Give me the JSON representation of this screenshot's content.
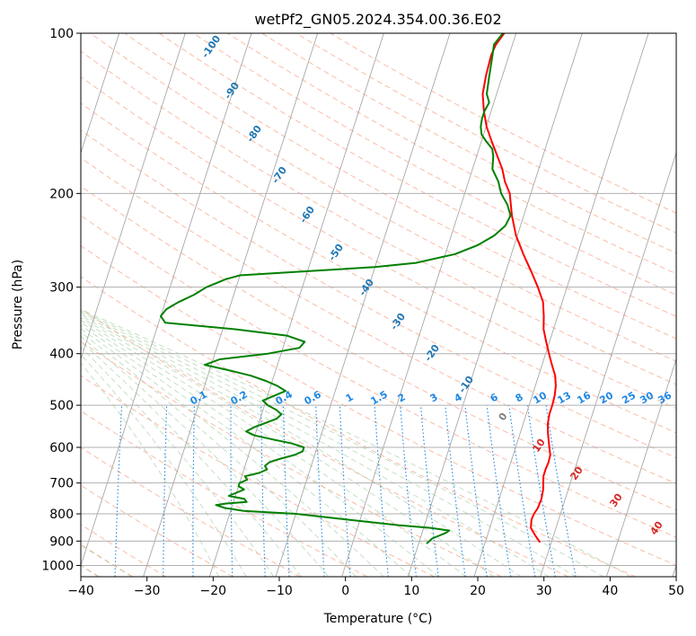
{
  "chart_data": {
    "type": "line",
    "title": "wetPf2_GN05.2024.354.00.36.E02",
    "xlabel": "Temperature (°C)",
    "ylabel": "Pressure (hPa)",
    "xlim": [
      -40,
      50
    ],
    "ylim": [
      1050,
      100
    ],
    "y_scale": "log",
    "x_ticks": [
      "−40",
      "−30",
      "−20",
      "−10",
      "0",
      "10",
      "20",
      "30",
      "40",
      "50"
    ],
    "y_ticks": [
      "100",
      "200",
      "300",
      "400",
      "500",
      "600",
      "700",
      "800",
      "900",
      "1000"
    ],
    "grid": true,
    "series": [
      {
        "color": "#ff0000",
        "p": [
          905,
          880,
          850,
          820,
          800,
          780,
          750,
          720,
          700,
          680,
          660,
          640,
          620,
          600,
          580,
          560,
          540,
          520,
          500,
          480,
          460,
          440,
          420,
          400,
          380,
          360,
          340,
          320,
          300,
          280,
          260,
          240,
          220,
          200,
          190,
          180,
          170,
          160,
          150,
          140,
          130,
          120,
          110,
          105,
          100
        ],
        "t": [
          28.3,
          27.3,
          26.2,
          25.9,
          26.0,
          26.3,
          26.4,
          26.2,
          25.9,
          25.6,
          25.6,
          25.7,
          25.6,
          25.1,
          24.6,
          24.1,
          23.7,
          23.5,
          23.5,
          23.4,
          23.1,
          22.5,
          21.5,
          20.5,
          19.5,
          18.5,
          17.9,
          17.1,
          15.6,
          13.8,
          11.8,
          9.8,
          8.2,
          6.8,
          5.5,
          4.5,
          3.1,
          1.6,
          0.1,
          -1.1,
          -2.1,
          -2.5,
          -2.7,
          -2.5,
          -1.8
        ]
      },
      {
        "color": "#008000",
        "p": [
          910,
          890,
          870,
          860,
          850,
          840,
          820,
          800,
          790,
          780,
          770,
          765,
          760,
          750,
          740,
          730,
          720,
          710,
          700,
          690,
          680,
          670,
          660,
          650,
          640,
          630,
          620,
          610,
          600,
          590,
          580,
          570,
          560,
          550,
          540,
          530,
          520,
          510,
          500,
          490,
          480,
          470,
          460,
          450,
          440,
          430,
          420,
          410,
          400,
          390,
          380,
          370,
          360,
          350,
          340,
          330,
          320,
          310,
          300,
          290,
          285,
          280,
          275,
          270,
          260,
          250,
          240,
          230,
          220,
          210,
          200,
          190,
          180,
          170,
          165,
          160,
          155,
          150,
          145,
          140,
          135,
          130,
          120,
          110,
          105,
          100
        ],
        "t": [
          11.2,
          11.8,
          13.5,
          14.0,
          11.0,
          6.0,
          -2.0,
          -10.0,
          -18.0,
          -21.0,
          -22.5,
          -21.0,
          -18.0,
          -18.5,
          -21.0,
          -20.0,
          -19.0,
          -20.0,
          -20.0,
          -19.0,
          -19.5,
          -17.5,
          -16.5,
          -17.0,
          -16.5,
          -15.0,
          -13.0,
          -12.0,
          -12.0,
          -14.0,
          -17.0,
          -20.0,
          -21.5,
          -20.5,
          -19.0,
          -17.5,
          -17.0,
          -18.0,
          -19.5,
          -20.5,
          -19.0,
          -17.5,
          -19.0,
          -21.0,
          -23.5,
          -27.0,
          -31.0,
          -29.0,
          -22.0,
          -17.5,
          -17.0,
          -20.0,
          -28.0,
          -39.0,
          -40.0,
          -39.5,
          -38.0,
          -36.0,
          -34.5,
          -32.0,
          -30.0,
          -20.0,
          -10.0,
          -4.0,
          1.5,
          4.5,
          6.5,
          7.7,
          8.0,
          7.0,
          5.5,
          4.5,
          3.0,
          2.5,
          2.0,
          0.8,
          -0.3,
          -0.8,
          -1.0,
          -1.0,
          -0.7,
          -1.5,
          -2.0,
          -2.5,
          -2.8,
          -2.0
        ]
      }
    ],
    "dry_adiabat_labels": [
      "-100",
      "-90",
      "-80",
      "-70",
      "-60",
      "-50",
      "-40",
      "-30",
      "-20",
      "-10"
    ],
    "moist_adiabat_labels": [
      "0",
      "10",
      "20",
      "30",
      "40"
    ],
    "mixing_ratio_labels": [
      "0.1",
      "0.2",
      "0.4",
      "0.6",
      "1",
      "1.5",
      "2",
      "3",
      "4",
      "6",
      "8",
      "10",
      "13",
      "16",
      "20",
      "25",
      "30",
      "36"
    ],
    "colors": {
      "temperature": "#ff0000",
      "dewpoint": "#008000",
      "isotherm_label": "#1f77b4",
      "mixing_ratio": "#1e88e5",
      "moist_label": "#d62728"
    }
  }
}
